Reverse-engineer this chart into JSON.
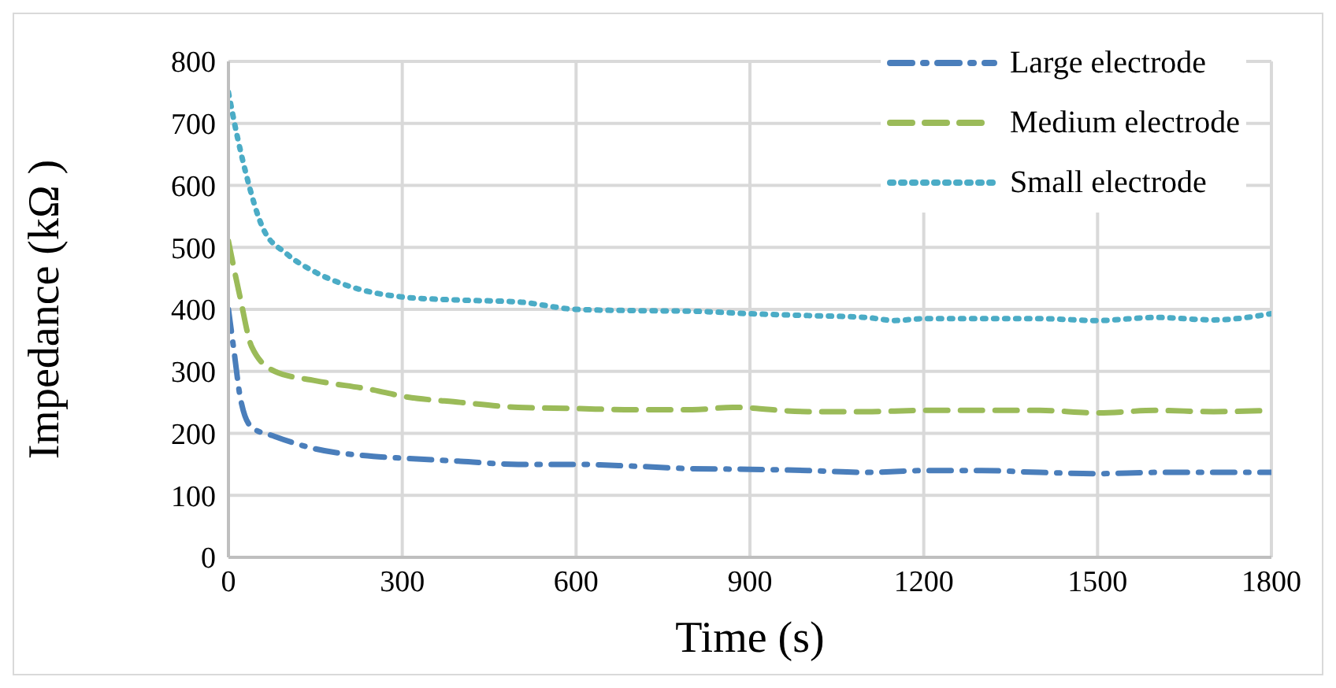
{
  "chart_data": {
    "type": "line",
    "xlabel": "Time (s)",
    "ylabel": "Impedance (kΩ )",
    "xlim": [
      0,
      1800
    ],
    "xticks": [
      0,
      300,
      600,
      900,
      1200,
      1500,
      1800
    ],
    "ylim": [
      0,
      800
    ],
    "yticks": [
      0,
      100,
      200,
      300,
      400,
      500,
      600,
      700,
      800
    ],
    "grid": true,
    "legend": "top right",
    "marker": "none",
    "series": [
      {
        "name": "Large electrode",
        "color": "#4a7ebb",
        "line_style": "dashdot",
        "x": [
          0,
          10,
          20,
          40,
          80,
          150,
          250,
          300,
          400,
          500,
          600,
          700,
          800,
          900,
          1000,
          1100,
          1200,
          1300,
          1400,
          1500,
          1600,
          1700,
          1800
        ],
        "values": [
          400,
          330,
          260,
          210,
          195,
          175,
          163,
          160,
          155,
          150,
          150,
          147,
          143,
          142,
          140,
          137,
          140,
          140,
          137,
          135,
          137,
          137,
          137
        ]
      },
      {
        "name": "Medium electrode",
        "color": "#9bbb59",
        "line_style": "dashed",
        "x": [
          0,
          20,
          40,
          80,
          150,
          250,
          300,
          400,
          500,
          600,
          700,
          800,
          870,
          1000,
          1100,
          1200,
          1300,
          1400,
          1500,
          1600,
          1700,
          1800
        ],
        "values": [
          510,
          420,
          340,
          300,
          285,
          270,
          260,
          250,
          242,
          240,
          238,
          238,
          242,
          235,
          235,
          237,
          237,
          237,
          233,
          237,
          235,
          237
        ]
      },
      {
        "name": "Small electrode",
        "color": "#4bacc6",
        "line_style": "dotted",
        "x": [
          0,
          15,
          30,
          60,
          100,
          150,
          200,
          300,
          400,
          500,
          600,
          700,
          800,
          900,
          1000,
          1100,
          1150,
          1200,
          1300,
          1400,
          1500,
          1600,
          1700,
          1800
        ],
        "values": [
          750,
          680,
          620,
          530,
          490,
          460,
          440,
          420,
          415,
          412,
          400,
          398,
          397,
          393,
          390,
          387,
          382,
          385,
          385,
          385,
          382,
          387,
          383,
          393
        ]
      }
    ]
  }
}
